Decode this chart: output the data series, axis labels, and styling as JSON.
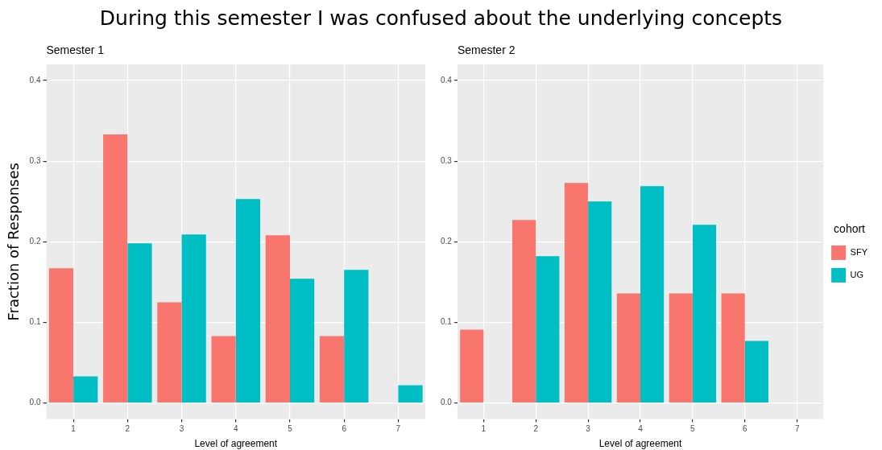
{
  "chart_data": [
    {
      "type": "bar",
      "title": "During this semester I was confused about the underlying concepts",
      "subtitle": "Semester 1",
      "xlabel": "Level of agreement",
      "ylabel": "Fraction of Responses",
      "categories": [
        "1",
        "2",
        "3",
        "4",
        "5",
        "6",
        "7"
      ],
      "series": [
        {
          "color": "#f8766d",
          "values": [
            0.167,
            0.333,
            0.125,
            0.083,
            0.208,
            0.083,
            null
          ]
        },
        {
          "color": "#00bfc4",
          "values": [
            0.033,
            0.198,
            0.209,
            0.253,
            0.154,
            0.165,
            0.022
          ]
        }
      ],
      "ylim": [
        -0.02,
        0.42
      ],
      "yticks": [
        {
          "value": 0,
          "label": "0.0"
        },
        0.1,
        0.2,
        0.3,
        0.4
      ],
      "grid": true,
      "legend": false
    },
    {
      "type": "bar",
      "subtitle": "Semester 2",
      "xlabel": "Level of agreement",
      "legend_title": "cohort",
      "categories": [
        "1",
        "2",
        "3",
        "4",
        "5",
        "6",
        "7"
      ],
      "series": [
        {
          "name": "SFY",
          "color": "#f8766d",
          "values": [
            0.091,
            0.227,
            0.273,
            0.136,
            0.136,
            0.136,
            null
          ]
        },
        {
          "name": "UG",
          "color": "#00bfc4",
          "values": [
            null,
            0.182,
            0.25,
            0.269,
            0.221,
            0.077,
            null
          ]
        }
      ],
      "ylim": [
        -0.02,
        0.42
      ],
      "yticks": [
        {
          "value": 0,
          "label": "0.0"
        },
        0.1,
        0.2,
        0.3,
        0.4
      ],
      "grid": true,
      "legend": "right"
    }
  ]
}
